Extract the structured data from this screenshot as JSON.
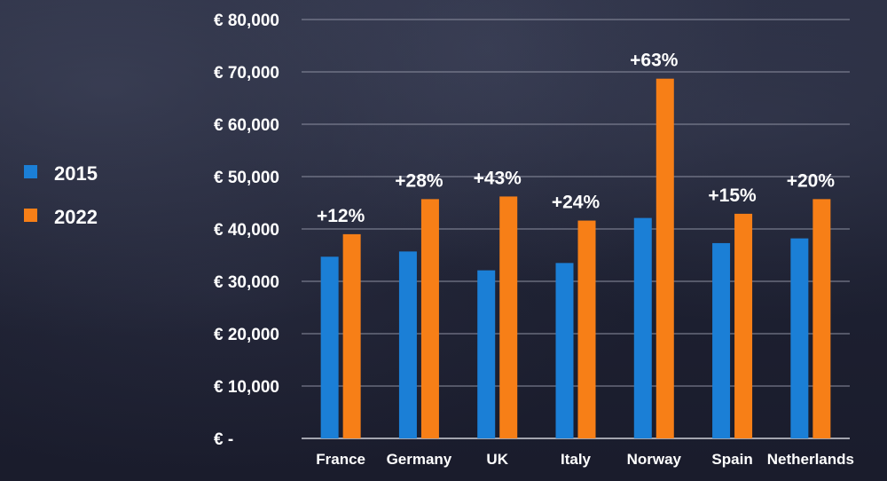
{
  "chart_data": {
    "type": "bar",
    "categories": [
      "France",
      "Germany",
      "UK",
      "Italy",
      "Norway",
      "Spain",
      "Netherlands"
    ],
    "series": [
      {
        "name": "2015",
        "values": [
          34700,
          35700,
          32100,
          33500,
          42100,
          37300,
          38200
        ],
        "color": "#1b7fd6"
      },
      {
        "name": "2022",
        "values": [
          39000,
          45700,
          46200,
          41600,
          68700,
          42900,
          45700
        ],
        "color": "#f77f17"
      }
    ],
    "change_labels": [
      "+12%",
      "+28%",
      "+43%",
      "+24%",
      "+63%",
      "+15%",
      "+20%"
    ],
    "y_ticks": [
      "€ -",
      "€ 10,000",
      "€ 20,000",
      "€ 30,000",
      "€ 40,000",
      "€ 50,000",
      "€ 60,000",
      "€ 70,000",
      "€ 80,000"
    ],
    "ylim": [
      0,
      80000
    ],
    "grid": true,
    "legend_position": "left"
  }
}
